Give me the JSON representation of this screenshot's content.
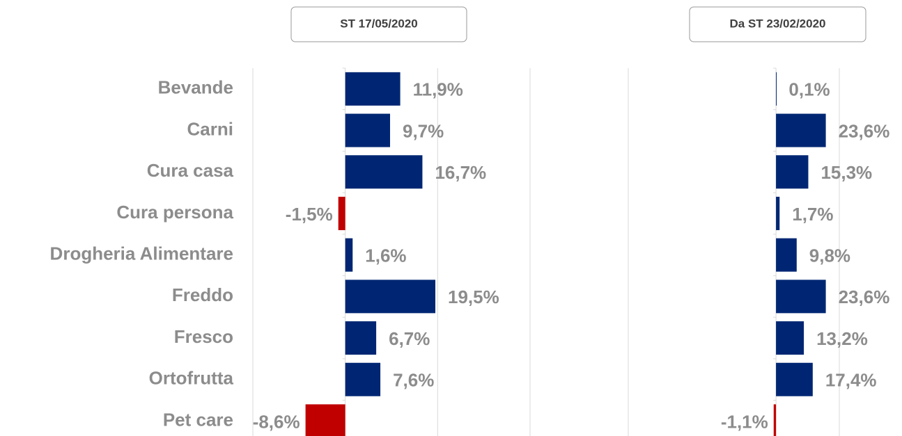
{
  "chart_data": [
    {
      "type": "bar",
      "orientation": "horizontal",
      "title": "ST 17/05/2020",
      "categories": [
        "Bevande",
        "Carni",
        "Cura casa",
        "Cura persona",
        "Drogheria Alimentare",
        "Freddo",
        "Fresco",
        "Ortofrutta",
        "Pet care"
      ],
      "values": [
        11.9,
        9.7,
        16.7,
        -1.5,
        1.6,
        19.5,
        6.7,
        7.6,
        -8.6
      ],
      "value_labels": [
        "11,9%",
        "9,7%",
        "16,7%",
        "-1,5%",
        "1,6%",
        "19,5%",
        "6,7%",
        "7,6%",
        "-8,6%"
      ],
      "color": "#002673",
      "negative_color": "#c00000",
      "xlim": [
        -20,
        40
      ],
      "xticks": [
        -20,
        0,
        20,
        40
      ],
      "grid": true
    },
    {
      "type": "bar",
      "orientation": "horizontal",
      "title": "Da ST 23/02/2020",
      "values": [
        0.1,
        23.6,
        15.3,
        1.7,
        9.8,
        23.6,
        13.2,
        17.4,
        -1.1
      ],
      "value_labels": [
        "0,1%",
        "23,6%",
        "15,3%",
        "1,7%",
        "9,8%",
        "23,6%",
        "13,2%",
        "17,4%",
        "-1,1%"
      ],
      "color": "#002673",
      "negative_color": "#c00000",
      "xlim": [
        -70,
        30
      ],
      "xticks": [
        -70,
        0,
        30
      ],
      "grid": true
    }
  ]
}
